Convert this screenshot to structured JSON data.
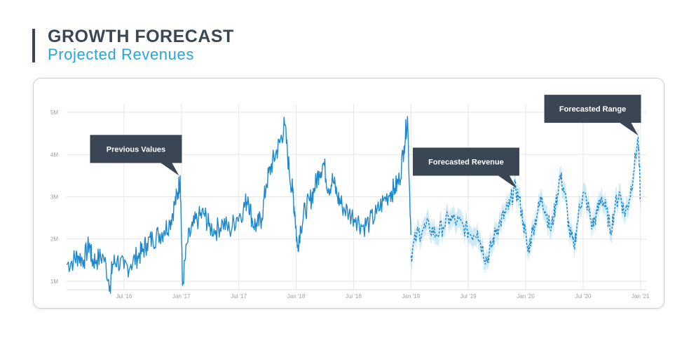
{
  "header": {
    "title": "GROWTH FORECAST",
    "subtitle": "Projected Revenues"
  },
  "colors": {
    "accent": "#29a3d8",
    "line": "#1e88cc",
    "band": "#aad8f2",
    "dark": "#3a4654",
    "grid": "#e6e6e6"
  },
  "chart_data": {
    "type": "line",
    "ylim": [
      0.8,
      5.2
    ],
    "yticks": [
      1,
      2,
      3,
      4,
      5
    ],
    "ytick_labels": [
      "1M",
      "2M",
      "3M",
      "4M",
      "5M"
    ],
    "xlim": [
      2016.0,
      2021.05
    ],
    "xticks": [
      2016.5,
      2017.0,
      2017.5,
      2018.0,
      2018.5,
      2019.0,
      2019.5,
      2020.0,
      2020.5,
      2021.0
    ],
    "xtick_labels": [
      "Jul '16",
      "Jan '17",
      "Jul '17",
      "Jan '18",
      "Jul '18",
      "Jan '19",
      "Jul '19",
      "Jan '20",
      "Jul '20",
      "Jan '21"
    ],
    "grid": true,
    "series": [
      {
        "name": "Previous Values",
        "style": "solid",
        "x": [
          2016.0,
          2016.06,
          2016.1,
          2016.15,
          2016.2,
          2016.22,
          2016.26,
          2016.32,
          2016.38,
          2016.4,
          2016.44,
          2016.5,
          2016.56,
          2016.62,
          2016.66,
          2016.7,
          2016.75,
          2016.8,
          2016.85,
          2016.9,
          2016.94,
          2016.97,
          2016.99,
          2017.01,
          2017.05,
          2017.1,
          2017.15,
          2017.2,
          2017.24,
          2017.3,
          2017.36,
          2017.42,
          2017.48,
          2017.54,
          2017.58,
          2017.62,
          2017.66,
          2017.7,
          2017.74,
          2017.78,
          2017.82,
          2017.86,
          2017.9,
          2017.94,
          2017.97,
          2017.99,
          2018.01,
          2018.04,
          2018.08,
          2018.12,
          2018.16,
          2018.2,
          2018.24,
          2018.28,
          2018.32,
          2018.36,
          2018.4,
          2018.46,
          2018.52,
          2018.58,
          2018.64,
          2018.7,
          2018.76,
          2018.82,
          2018.86,
          2018.9,
          2018.94,
          2018.97,
          2019.0
        ],
        "values": [
          1.4,
          1.5,
          1.6,
          1.5,
          1.9,
          1.5,
          1.5,
          1.6,
          0.9,
          1.4,
          1.5,
          1.3,
          1.4,
          1.6,
          1.7,
          1.9,
          2.0,
          2.1,
          2.2,
          2.4,
          2.8,
          3.1,
          3.5,
          0.9,
          1.9,
          2.3,
          2.5,
          2.6,
          2.3,
          2.2,
          2.4,
          2.2,
          2.5,
          2.7,
          3.0,
          2.4,
          2.3,
          2.5,
          3.3,
          3.7,
          4.0,
          4.3,
          4.7,
          3.6,
          3.1,
          2.6,
          1.8,
          2.3,
          2.7,
          2.9,
          3.2,
          3.6,
          3.8,
          3.2,
          3.4,
          3.0,
          2.8,
          2.6,
          2.5,
          2.3,
          2.4,
          2.6,
          2.9,
          3.1,
          3.2,
          3.4,
          4.2,
          4.9,
          2.1
        ]
      },
      {
        "name": "Forecasted Revenue",
        "style": "dashed",
        "x": [
          2019.0,
          2019.05,
          2019.1,
          2019.16,
          2019.22,
          2019.28,
          2019.34,
          2019.4,
          2019.46,
          2019.52,
          2019.58,
          2019.62,
          2019.66,
          2019.7,
          2019.74,
          2019.78,
          2019.82,
          2019.86,
          2019.9,
          2019.94,
          2019.98,
          2020.02,
          2020.06,
          2020.1,
          2020.14,
          2020.18,
          2020.22,
          2020.26,
          2020.3,
          2020.34,
          2020.38,
          2020.42,
          2020.46,
          2020.5,
          2020.54,
          2020.58,
          2020.62,
          2020.66,
          2020.7,
          2020.74,
          2020.78,
          2020.82,
          2020.86,
          2020.9,
          2020.94,
          2020.98,
          2021.0
        ],
        "values": [
          1.6,
          2.1,
          2.2,
          2.3,
          2.1,
          2.3,
          2.5,
          2.4,
          2.3,
          2.1,
          2.2,
          1.8,
          1.5,
          1.8,
          2.2,
          2.4,
          2.6,
          2.8,
          3.2,
          3.0,
          2.4,
          1.7,
          2.2,
          2.6,
          3.0,
          2.6,
          2.2,
          2.8,
          3.5,
          3.1,
          2.2,
          1.8,
          2.6,
          3.1,
          2.8,
          2.3,
          2.6,
          3.0,
          2.7,
          2.2,
          2.8,
          3.1,
          2.6,
          2.9,
          3.6,
          4.4,
          2.9
        ]
      }
    ],
    "band": {
      "name": "Forecasted Range",
      "spread": 0.22
    },
    "annotations": [
      {
        "label": "Previous Values",
        "x": 2016.98,
        "y": 3.5
      },
      {
        "label": "Forecasted Revenue",
        "x": 2019.92,
        "y": 3.2
      },
      {
        "label": "Forecasted Range",
        "x": 2020.98,
        "y": 4.45
      }
    ]
  }
}
